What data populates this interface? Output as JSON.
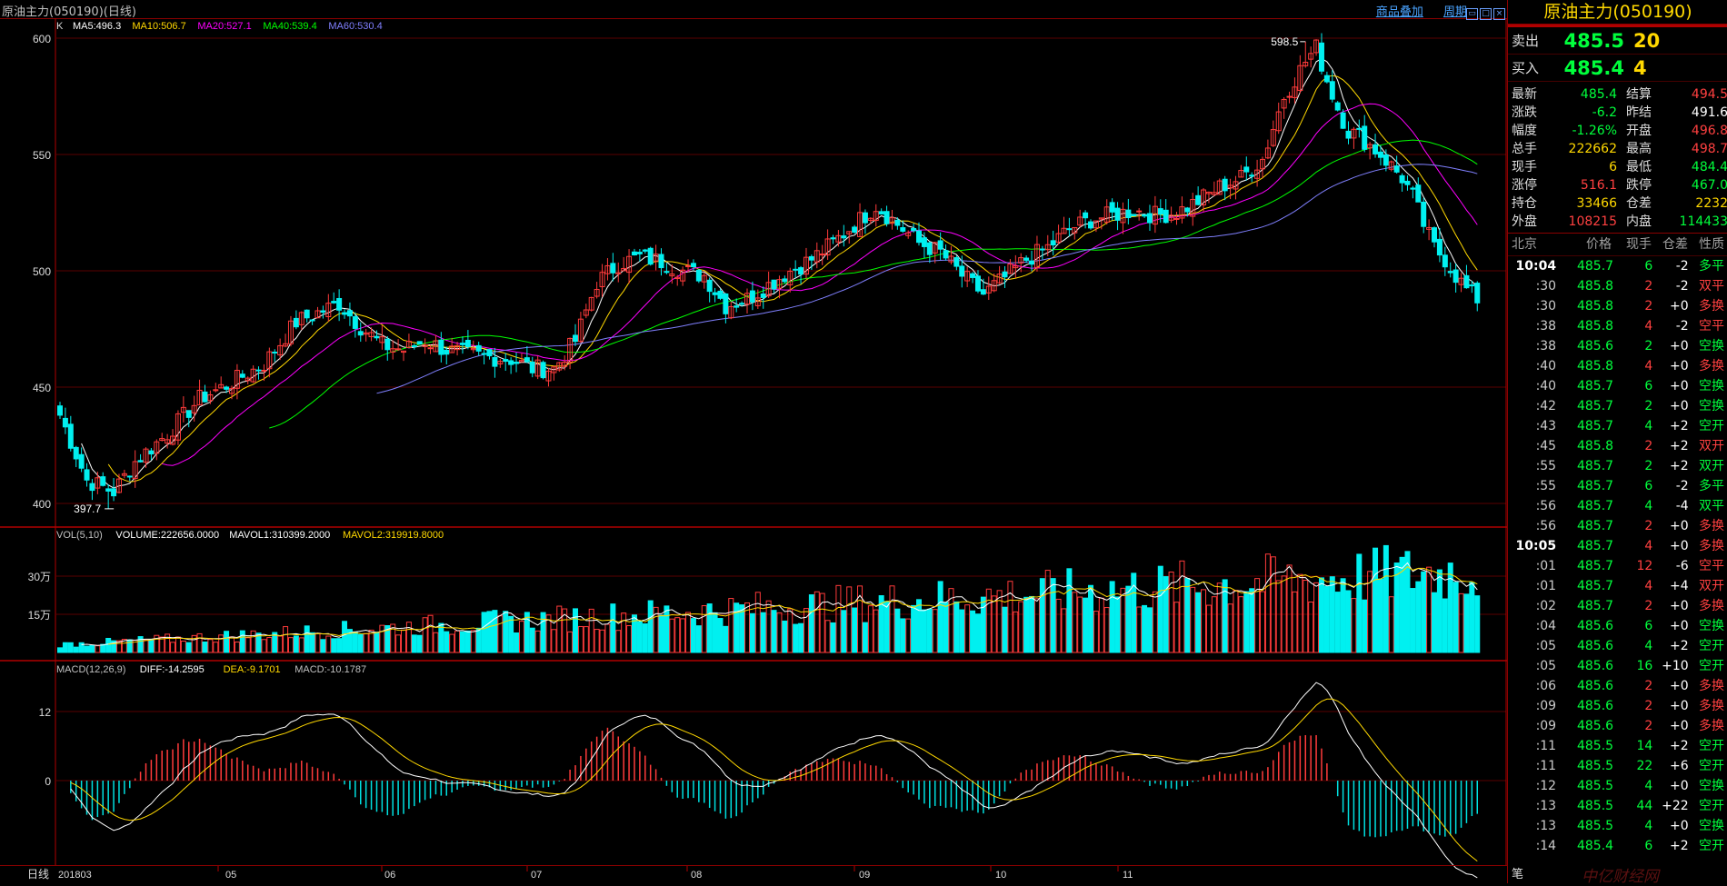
{
  "header": {
    "title": "原油主力(050190)(日线)",
    "links": [
      "商品叠加",
      "周期"
    ],
    "win_buttons": [
      "restore",
      "max",
      "close"
    ]
  },
  "ma_legend": {
    "k": "K",
    "items": [
      {
        "label": "MA5:496.3",
        "color": "#ffffff"
      },
      {
        "label": "MA10:506.7",
        "color": "#ffd800"
      },
      {
        "label": "MA20:527.1",
        "color": "#ff00ff"
      },
      {
        "label": "MA40:539.4",
        "color": "#00ff00"
      },
      {
        "label": "MA60:530.4",
        "color": "#8080ff"
      }
    ]
  },
  "vol_legend": {
    "items": [
      {
        "label": "VOL(5,10)",
        "color": "#c0c0c0"
      },
      {
        "label": "VOLUME:222656.0000",
        "color": "#ffffff"
      },
      {
        "label": "MAVOL1:310399.2000",
        "color": "#ffffff"
      },
      {
        "label": "MAVOL2:319919.8000",
        "color": "#ffd800"
      }
    ]
  },
  "macd_legend": {
    "items": [
      {
        "label": "MACD(12,26,9)",
        "color": "#c0c0c0"
      },
      {
        "label": "DIFF:-14.2595",
        "color": "#ffffff"
      },
      {
        "label": "DEA:-9.1701",
        "color": "#ffd800"
      },
      {
        "label": "MACD:-10.1787",
        "color": "#c0c0c0"
      }
    ]
  },
  "price_axis": {
    "ticks": [
      "600",
      "550",
      "500",
      "450",
      "400"
    ],
    "high_label": "598.5",
    "low_label": "397.7"
  },
  "vol_axis": {
    "ticks": [
      "30万",
      "15万"
    ]
  },
  "macd_axis": {
    "ticks": [
      "12",
      "0"
    ]
  },
  "date_axis": {
    "period": "日线",
    "labels": [
      "201803",
      "05",
      "06",
      "07",
      "08",
      "09",
      "10",
      "11"
    ]
  },
  "chart_data": [
    {
      "type": "candlestick",
      "title": "",
      "ylim": [
        390,
        610
      ],
      "keypoints": [
        {
          "label": "low",
          "value": 397.7
        },
        {
          "label": "high",
          "value": 598.5
        }
      ],
      "series": [
        {
          "name": "MA5",
          "last": 496.3
        },
        {
          "name": "MA10",
          "last": 506.7
        },
        {
          "name": "MA20",
          "last": 527.1
        },
        {
          "name": "MA40",
          "last": 539.4
        },
        {
          "name": "MA60",
          "last": 530.4
        }
      ]
    },
    {
      "type": "bar",
      "title": "VOL(5,10)",
      "values_last": {
        "VOLUME": 222656.0,
        "MAVOL1": 310399.2,
        "MAVOL2": 319919.8
      }
    },
    {
      "type": "line",
      "title": "MACD(12,26,9)",
      "values_last": {
        "DIFF": -14.2595,
        "DEA": -9.1701,
        "MACD": -10.1787
      }
    }
  ],
  "quote": {
    "name": "原油主力(050190)",
    "sell_label": "卖出",
    "sell_price": "485.5",
    "sell_vol": "20",
    "buy_label": "买入",
    "buy_price": "485.4",
    "buy_vol": "4",
    "stats": [
      {
        "k": "最新",
        "v": "485.4",
        "vc": "green",
        "k2": "结算",
        "v2": "494.5",
        "v2c": "red"
      },
      {
        "k": "涨跌",
        "v": "-6.2",
        "vc": "green",
        "k2": "昨结",
        "v2": "491.6",
        "v2c": "white"
      },
      {
        "k": "幅度",
        "v": "-1.26%",
        "vc": "green",
        "k2": "开盘",
        "v2": "496.8",
        "v2c": "red"
      },
      {
        "k": "总手",
        "v": "222662",
        "vc": "yellow",
        "k2": "最高",
        "v2": "498.7",
        "v2c": "red"
      },
      {
        "k": "现手",
        "v": "6",
        "vc": "yellow",
        "k2": "最低",
        "v2": "484.4",
        "v2c": "green"
      },
      {
        "k": "涨停",
        "v": "516.1",
        "vc": "red",
        "k2": "跌停",
        "v2": "467.0",
        "v2c": "green"
      },
      {
        "k": "持仓",
        "v": "33466",
        "vc": "yellow",
        "k2": "仓差",
        "v2": "2232",
        "v2c": "yellow"
      },
      {
        "k": "外盘",
        "v": "108215",
        "vc": "red",
        "k2": "内盘",
        "v2": "114433",
        "v2c": "green"
      }
    ],
    "tick_header": [
      "北京",
      "价格",
      "现手",
      "仓差",
      "性质"
    ],
    "ticks": [
      {
        "t": "10:04",
        "p": "485.7",
        "v": "6",
        "oi": "-2",
        "n": "多平",
        "nc": "green",
        "vc": "green",
        "oic": "white",
        "tb": true
      },
      {
        "t": ":30",
        "p": "485.8",
        "v": "2",
        "oi": "-2",
        "n": "双平",
        "nc": "red",
        "vc": "red",
        "oic": "white"
      },
      {
        "t": ":30",
        "p": "485.8",
        "v": "2",
        "oi": "+0",
        "n": "多换",
        "nc": "red",
        "vc": "red",
        "oic": "white"
      },
      {
        "t": ":38",
        "p": "485.8",
        "v": "4",
        "oi": "-2",
        "n": "空平",
        "nc": "red",
        "vc": "red",
        "oic": "white"
      },
      {
        "t": ":38",
        "p": "485.6",
        "v": "2",
        "oi": "+0",
        "n": "空换",
        "nc": "green",
        "vc": "green",
        "oic": "white"
      },
      {
        "t": ":40",
        "p": "485.8",
        "v": "4",
        "oi": "+0",
        "n": "多换",
        "nc": "red",
        "vc": "red",
        "oic": "white"
      },
      {
        "t": ":40",
        "p": "485.7",
        "v": "6",
        "oi": "+0",
        "n": "空换",
        "nc": "green",
        "vc": "green",
        "oic": "white"
      },
      {
        "t": ":42",
        "p": "485.7",
        "v": "2",
        "oi": "+0",
        "n": "空换",
        "nc": "green",
        "vc": "green",
        "oic": "white"
      },
      {
        "t": ":43",
        "p": "485.7",
        "v": "4",
        "oi": "+2",
        "n": "空开",
        "nc": "green",
        "vc": "green",
        "oic": "white"
      },
      {
        "t": ":45",
        "p": "485.8",
        "v": "2",
        "oi": "+2",
        "n": "双开",
        "nc": "red",
        "vc": "red",
        "oic": "white"
      },
      {
        "t": ":55",
        "p": "485.7",
        "v": "2",
        "oi": "+2",
        "n": "双开",
        "nc": "green",
        "vc": "green",
        "oic": "white"
      },
      {
        "t": ":55",
        "p": "485.7",
        "v": "6",
        "oi": "-2",
        "n": "多平",
        "nc": "green",
        "vc": "green",
        "oic": "white"
      },
      {
        "t": ":56",
        "p": "485.7",
        "v": "4",
        "oi": "-4",
        "n": "双平",
        "nc": "green",
        "vc": "green",
        "oic": "white"
      },
      {
        "t": ":56",
        "p": "485.7",
        "v": "2",
        "oi": "+0",
        "n": "多换",
        "nc": "red",
        "vc": "red",
        "oic": "white"
      },
      {
        "t": "10:05",
        "p": "485.7",
        "v": "4",
        "oi": "+0",
        "n": "多换",
        "nc": "red",
        "vc": "red",
        "oic": "white",
        "tb": true
      },
      {
        "t": ":01",
        "p": "485.7",
        "v": "12",
        "oi": "-6",
        "n": "空平",
        "nc": "red",
        "vc": "red",
        "oic": "white"
      },
      {
        "t": ":01",
        "p": "485.7",
        "v": "4",
        "oi": "+4",
        "n": "双开",
        "nc": "red",
        "vc": "red",
        "oic": "white"
      },
      {
        "t": ":02",
        "p": "485.7",
        "v": "2",
        "oi": "+0",
        "n": "多换",
        "nc": "red",
        "vc": "red",
        "oic": "white"
      },
      {
        "t": ":04",
        "p": "485.6",
        "v": "6",
        "oi": "+0",
        "n": "空换",
        "nc": "green",
        "vc": "green",
        "oic": "white"
      },
      {
        "t": ":05",
        "p": "485.6",
        "v": "4",
        "oi": "+2",
        "n": "空开",
        "nc": "green",
        "vc": "green",
        "oic": "white"
      },
      {
        "t": ":05",
        "p": "485.6",
        "v": "16",
        "oi": "+10",
        "n": "空开",
        "nc": "green",
        "vc": "green",
        "oic": "white"
      },
      {
        "t": ":06",
        "p": "485.6",
        "v": "2",
        "oi": "+0",
        "n": "多换",
        "nc": "red",
        "vc": "red",
        "oic": "white"
      },
      {
        "t": ":09",
        "p": "485.6",
        "v": "2",
        "oi": "+0",
        "n": "多换",
        "nc": "red",
        "vc": "red",
        "oic": "white"
      },
      {
        "t": ":09",
        "p": "485.6",
        "v": "2",
        "oi": "+0",
        "n": "多换",
        "nc": "red",
        "vc": "red",
        "oic": "white"
      },
      {
        "t": ":11",
        "p": "485.5",
        "v": "14",
        "oi": "+2",
        "n": "空开",
        "nc": "green",
        "vc": "green",
        "oic": "white"
      },
      {
        "t": ":11",
        "p": "485.5",
        "v": "22",
        "oi": "+6",
        "n": "空开",
        "nc": "green",
        "vc": "green",
        "oic": "white"
      },
      {
        "t": ":12",
        "p": "485.5",
        "v": "4",
        "oi": "+0",
        "n": "空换",
        "nc": "green",
        "vc": "green",
        "oic": "white"
      },
      {
        "t": ":13",
        "p": "485.5",
        "v": "44",
        "oi": "+22",
        "n": "空开",
        "nc": "green",
        "vc": "green",
        "oic": "white"
      },
      {
        "t": ":13",
        "p": "485.5",
        "v": "4",
        "oi": "+0",
        "n": "空换",
        "nc": "green",
        "vc": "green",
        "oic": "white"
      },
      {
        "t": ":14",
        "p": "485.4",
        "v": "6",
        "oi": "+2",
        "n": "空开",
        "nc": "green",
        "vc": "green",
        "oic": "white"
      }
    ],
    "bottom_tab": "笔"
  },
  "watermark": "中亿财经网"
}
